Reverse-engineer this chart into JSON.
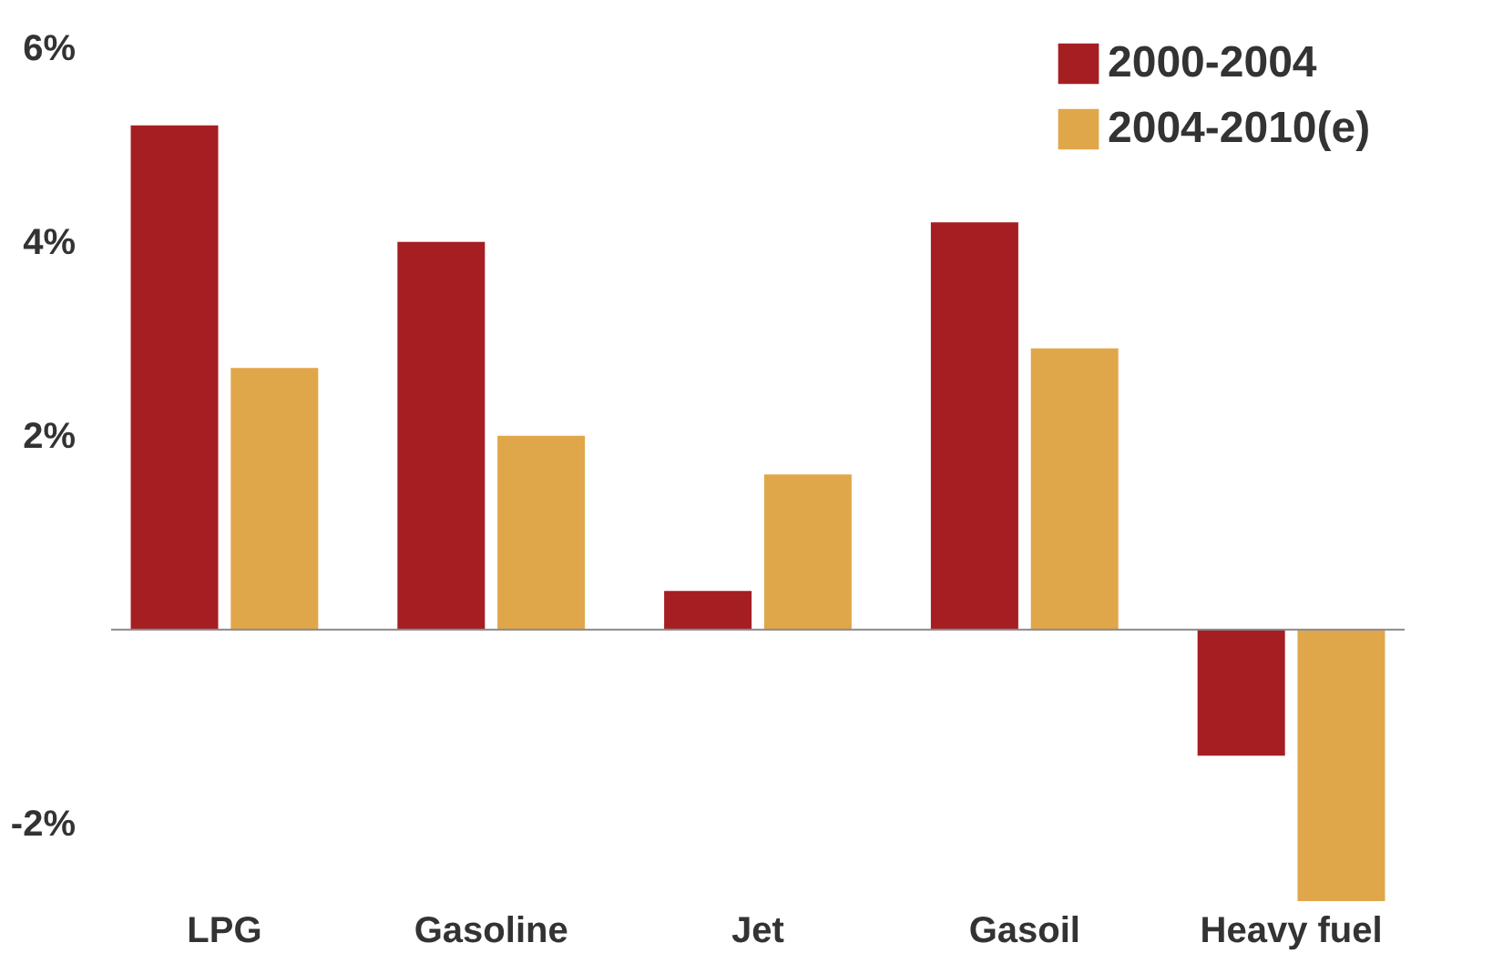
{
  "chart_data": {
    "type": "bar",
    "categories": [
      "LPG",
      "Gasoline",
      "Jet",
      "Gasoil",
      "Heavy fuel"
    ],
    "series": [
      {
        "name": "2000-2004",
        "color": "#a51e22",
        "values": [
          5.2,
          4.0,
          0.4,
          4.2,
          -1.3
        ]
      },
      {
        "name": "2004-2010(e)",
        "color": "#e0a64a",
        "values": [
          2.7,
          2.0,
          1.6,
          2.9,
          -2.8
        ]
      }
    ],
    "ylim": [
      -2.8,
      6.4
    ],
    "yticks": [
      {
        "value": -2,
        "label": "-2%"
      },
      {
        "value": 2,
        "label": "2%"
      },
      {
        "value": 4,
        "label": "4%"
      },
      {
        "value": 6,
        "label": "6%"
      }
    ],
    "grid": false,
    "legend": "top right"
  }
}
